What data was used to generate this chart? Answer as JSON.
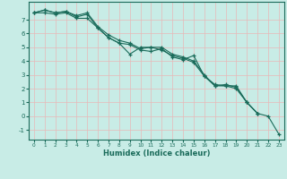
{
  "xlabel": "Humidex (Indice chaleur)",
  "xlim": [
    -0.5,
    23.5
  ],
  "ylim": [
    -1.7,
    8.3
  ],
  "yticks": [
    -1,
    0,
    1,
    2,
    3,
    4,
    5,
    6,
    7
  ],
  "xticks": [
    0,
    1,
    2,
    3,
    4,
    5,
    6,
    7,
    8,
    9,
    10,
    11,
    12,
    13,
    14,
    15,
    16,
    17,
    18,
    19,
    20,
    21,
    22,
    23
  ],
  "background_color": "#c8ece6",
  "grid_color": "#e8b8b8",
  "line_color": "#1a6b5a",
  "lines": [
    {
      "x": [
        0,
        1,
        2,
        3,
        4,
        5,
        6,
        7,
        8,
        9,
        10,
        11,
        12,
        13,
        14,
        15,
        16,
        17,
        18,
        19,
        20,
        21
      ],
      "y": [
        7.5,
        7.7,
        7.5,
        7.6,
        7.3,
        7.5,
        6.5,
        5.9,
        5.5,
        5.3,
        4.9,
        5.0,
        5.0,
        4.5,
        4.3,
        4.0,
        3.0,
        2.2,
        2.2,
        2.2,
        1.0,
        0.2
      ]
    },
    {
      "x": [
        0,
        1,
        2,
        3,
        4,
        5,
        6,
        7,
        8,
        9,
        10,
        11,
        12,
        13,
        14,
        15,
        16,
        17,
        18,
        19,
        20,
        21
      ],
      "y": [
        7.5,
        7.7,
        7.5,
        7.6,
        7.2,
        7.4,
        6.4,
        5.7,
        5.3,
        4.5,
        5.0,
        5.0,
        4.8,
        4.4,
        4.2,
        3.9,
        2.9,
        2.3,
        2.2,
        2.0,
        1.0,
        0.2
      ]
    },
    {
      "x": [
        0,
        1,
        2,
        3,
        4,
        5,
        6,
        7,
        8,
        9,
        10,
        11,
        12,
        13,
        14,
        15,
        16,
        17,
        18,
        19,
        20,
        21,
        22,
        23
      ],
      "y": [
        7.5,
        7.5,
        7.4,
        7.5,
        7.1,
        7.1,
        6.4,
        5.7,
        5.3,
        5.2,
        4.8,
        4.7,
        4.9,
        4.3,
        4.1,
        4.4,
        2.9,
        2.2,
        2.3,
        2.1,
        1.0,
        0.2,
        0.0,
        -1.3
      ]
    }
  ]
}
